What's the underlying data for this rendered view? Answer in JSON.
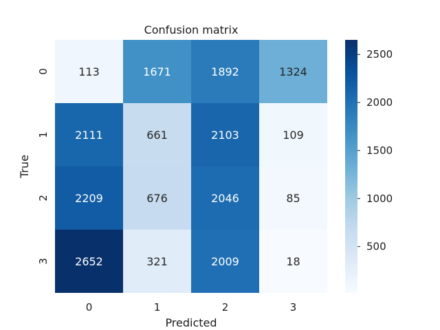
{
  "chart_data": {
    "type": "heatmap",
    "title": "Confusion matrix",
    "xlabel": "Predicted",
    "ylabel": "True",
    "x_categories": [
      "0",
      "1",
      "2",
      "3"
    ],
    "y_categories": [
      "0",
      "1",
      "2",
      "3"
    ],
    "values": [
      [
        113,
        1671,
        1892,
        1324
      ],
      [
        2111,
        661,
        2103,
        109
      ],
      [
        2209,
        676,
        2046,
        85
      ],
      [
        2652,
        321,
        2009,
        18
      ]
    ],
    "colormap": "Blues",
    "colorbar": {
      "range": [
        18,
        2652
      ],
      "ticks": [
        "500",
        "1000",
        "1500",
        "2000",
        "2500"
      ]
    }
  }
}
